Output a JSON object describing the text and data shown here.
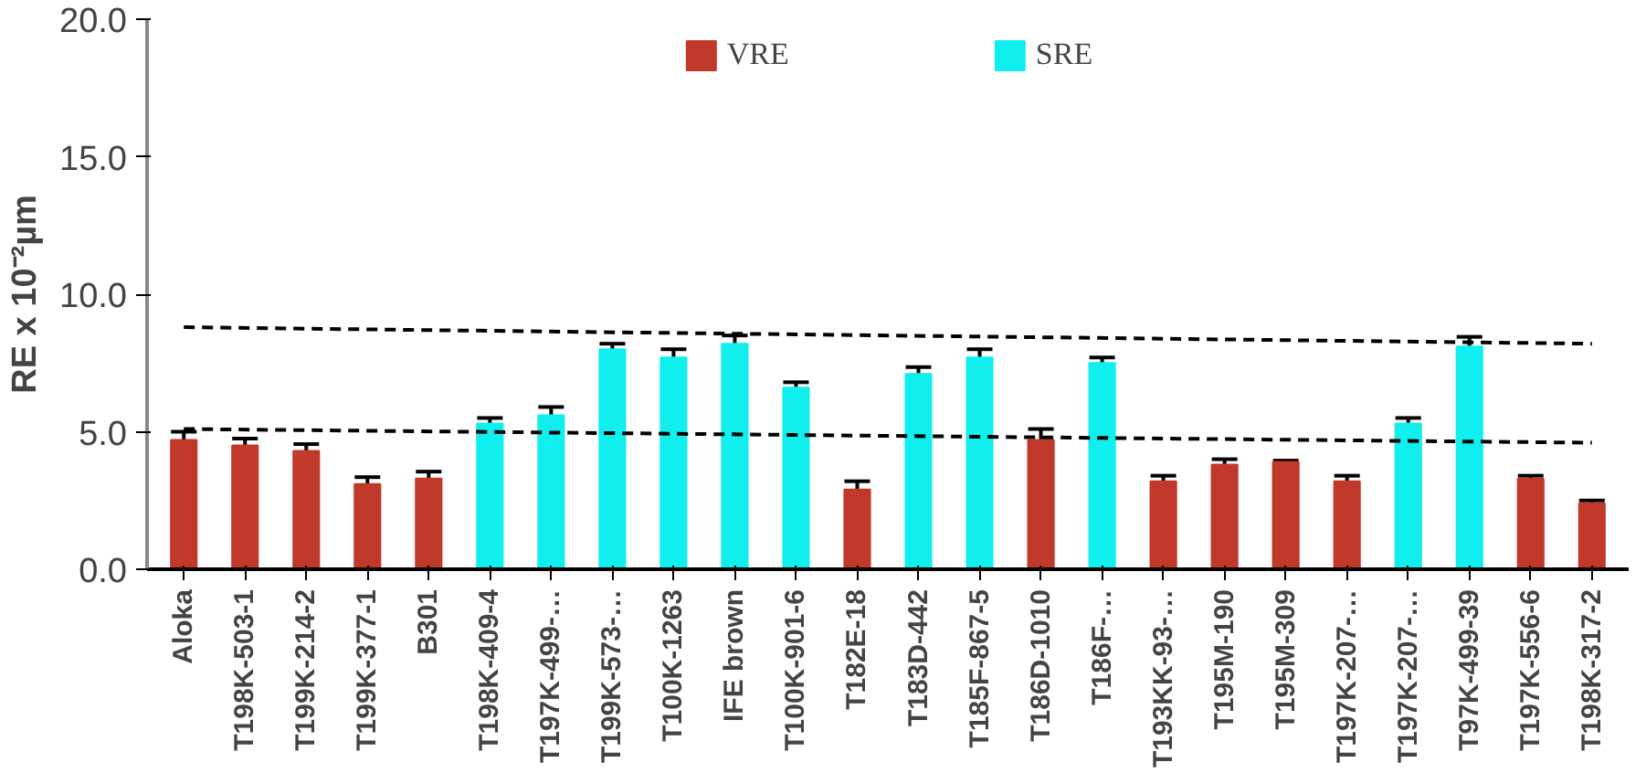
{
  "chart_data": {
    "type": "bar",
    "ylabel": "RE x 10⁻²µm",
    "categories": [
      "Aloka",
      "T198K-503-1",
      "T199K-214-2",
      "T199K-377-1",
      "B301",
      "T198K-409-4",
      "T197K-499-…",
      "T199K-573-…",
      "T100K-1263",
      "IFE brown",
      "T100K-901-6",
      "T182E-18",
      "T183D-442",
      "T185F-867-5",
      "T186D-1010",
      "T186F-…",
      "T193KK-93-…",
      "T195M-190",
      "T195M-309",
      "T197K-207-…",
      "T197K-207-…",
      "T97K-499-39",
      "T197K-556-6",
      "T198K-317-2"
    ],
    "series": [
      {
        "name": "VRE",
        "color": "#c0392b",
        "values": [
          4.7,
          4.5,
          4.3,
          3.1,
          3.3,
          null,
          null,
          null,
          null,
          null,
          null,
          2.9,
          null,
          null,
          4.7,
          null,
          3.2,
          3.8,
          3.9,
          3.2,
          null,
          null,
          3.3,
          2.4
        ],
        "errors": [
          0.3,
          0.25,
          0.25,
          0.25,
          0.25,
          null,
          null,
          null,
          null,
          null,
          null,
          0.3,
          null,
          null,
          0.4,
          null,
          0.2,
          0.2,
          0.05,
          0.2,
          null,
          null,
          0.1,
          0.1
        ]
      },
      {
        "name": "SRE",
        "color": "#11eeee",
        "values": [
          null,
          null,
          null,
          null,
          null,
          5.3,
          5.6,
          8.0,
          7.7,
          8.2,
          6.6,
          null,
          7.1,
          7.7,
          null,
          7.5,
          null,
          null,
          null,
          null,
          5.3,
          8.1,
          null,
          null
        ],
        "errors": [
          null,
          null,
          null,
          null,
          null,
          0.2,
          0.3,
          0.2,
          0.3,
          0.3,
          0.2,
          null,
          0.25,
          0.3,
          null,
          0.2,
          null,
          null,
          null,
          null,
          0.2,
          0.35,
          null,
          null
        ]
      },
      {
        "type": "line",
        "color": "#000000",
        "line_style": "dashed",
        "x": [
          "Aloka",
          "T198K-317-2"
        ],
        "values": [
          8.8,
          8.2
        ]
      },
      {
        "type": "line",
        "color": "#000000",
        "line_style": "dashed",
        "x": [
          "Aloka",
          "T198K-317-2"
        ],
        "values": [
          5.1,
          4.6
        ]
      }
    ],
    "ylim": [
      0,
      20
    ],
    "yticks": [
      {
        "value": 0,
        "label": "0.0"
      },
      {
        "value": 5,
        "label": "5.0"
      },
      {
        "value": 10,
        "label": "10.0"
      },
      {
        "value": 15,
        "label": "15.0"
      },
      {
        "value": 20,
        "label": "20.0"
      }
    ],
    "grid": false,
    "legend": "top"
  }
}
